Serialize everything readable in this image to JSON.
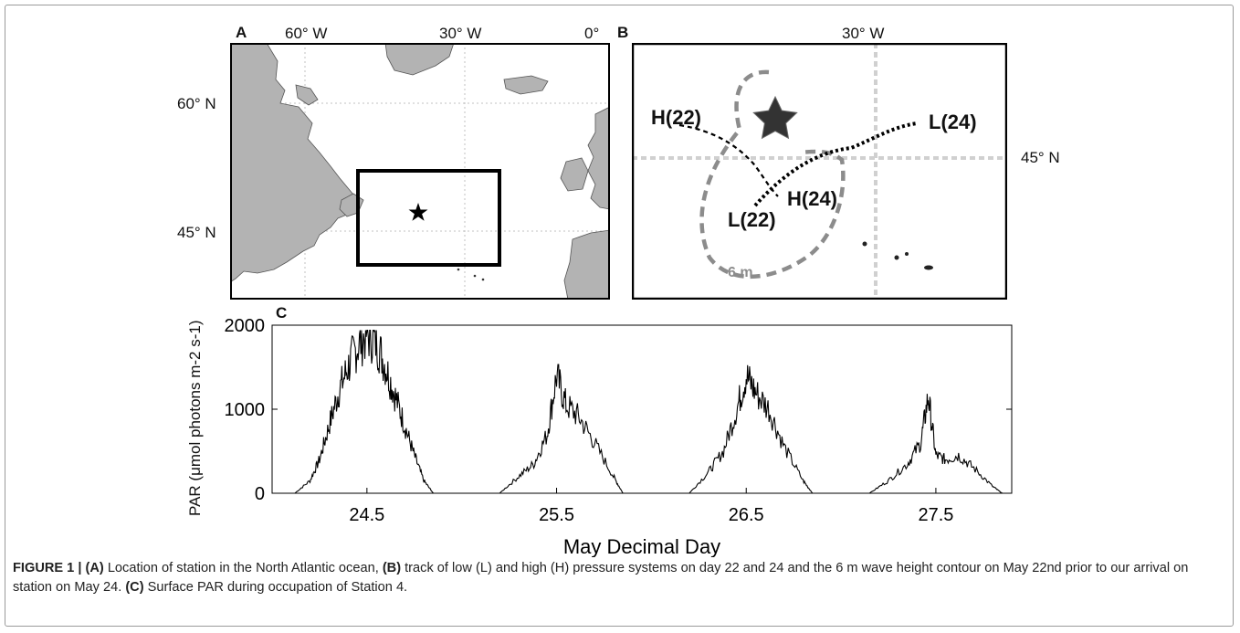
{
  "panel_a": {
    "letter": "A",
    "lon_labels": [
      "60° W",
      "30° W",
      "0°"
    ],
    "lat_labels": [
      "60° N",
      "45° N"
    ],
    "star_icon": "star-icon"
  },
  "panel_b": {
    "letter": "B",
    "lon_label": "30° W",
    "lat_label": "45° N",
    "labels": {
      "h22": "H(22)",
      "l24": "L(24)",
      "l22": "L(22)",
      "h24": "H(24)",
      "contour": "6 m"
    },
    "colors": {
      "contour": "#8c8c8c",
      "grid": "#c8c8c8"
    }
  },
  "panel_c": {
    "letter": "C"
  },
  "chart_data": {
    "type": "line",
    "title": "",
    "xlabel": "May Decimal Day",
    "ylabel": "PAR (μmol photons m-2 s-1)",
    "xlim": [
      24.0,
      27.9
    ],
    "ylim": [
      0,
      2000
    ],
    "xticks": [
      24.5,
      25.5,
      26.5,
      27.5
    ],
    "yticks": [
      0,
      1000,
      2000
    ],
    "grid": false,
    "series": [
      {
        "x": [
          24.12,
          24.2,
          24.25,
          24.3,
          24.35,
          24.4,
          24.45,
          24.5,
          24.55,
          24.6,
          24.65,
          24.7,
          24.75,
          24.8,
          24.85,
          25.2,
          25.3,
          25.38,
          25.45,
          25.5,
          25.55,
          25.62,
          25.7,
          25.8,
          25.85,
          26.2,
          26.3,
          26.38,
          26.45,
          26.5,
          26.55,
          26.62,
          26.7,
          26.8,
          26.85,
          27.15,
          27.25,
          27.35,
          27.42,
          27.46,
          27.5,
          27.55,
          27.62,
          27.7,
          27.8,
          27.85
        ],
        "y": [
          0,
          150,
          400,
          800,
          1200,
          1500,
          1750,
          1900,
          1800,
          1500,
          1150,
          800,
          450,
          150,
          0,
          0,
          200,
          350,
          700,
          1400,
          1050,
          900,
          600,
          200,
          0,
          0,
          250,
          500,
          1000,
          1400,
          1200,
          1000,
          550,
          150,
          0,
          0,
          150,
          350,
          600,
          1150,
          450,
          400,
          450,
          300,
          80,
          0
        ]
      }
    ]
  },
  "caption": {
    "figure_label": "FIGURE 1 | ",
    "a_tag": "(A)",
    "a_text": " Location of station in the North Atlantic ocean, ",
    "b_tag": "(B)",
    "b_text": " track of low (L) and high (H) pressure systems on day 22 and 24 and the 6 m wave height contour on May 22nd prior to our arrival on station on May 24. ",
    "c_tag": "(C)",
    "c_text": " Surface PAR during occupation of Station 4."
  }
}
